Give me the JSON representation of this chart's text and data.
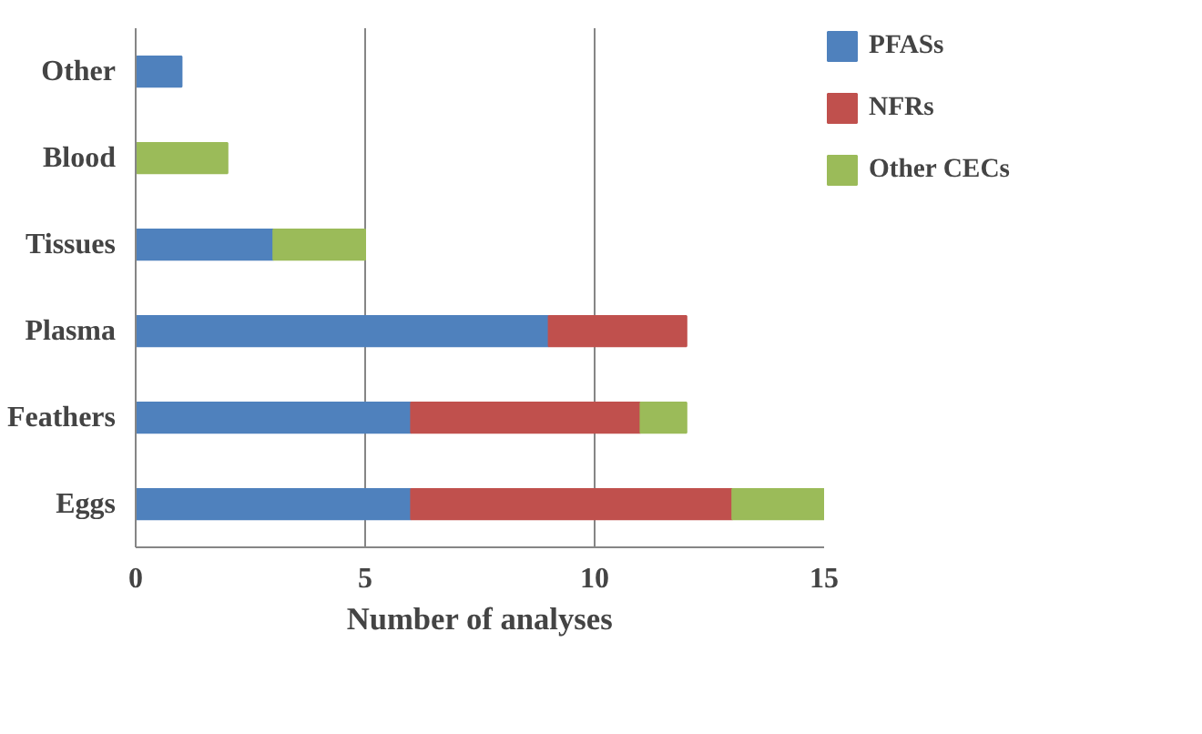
{
  "chart_data": {
    "type": "bar",
    "orientation": "horizontal",
    "stacked": true,
    "categories": [
      "Other",
      "Blood",
      "Tissues",
      "Plasma",
      "Feathers",
      "Eggs"
    ],
    "series": [
      {
        "name": "PFASs",
        "color": "#4f81bd",
        "values": [
          1,
          null,
          3,
          9,
          6,
          6
        ]
      },
      {
        "name": "NFRs",
        "color": "#c0504d",
        "values": [
          null,
          null,
          null,
          3,
          5,
          7
        ]
      },
      {
        "name": "Other CECs",
        "color": "#9bbb59",
        "values": [
          null,
          2,
          2,
          null,
          1,
          2
        ]
      }
    ],
    "xlabel": "Number of analyses",
    "xlim": [
      0,
      15
    ],
    "xticks": [
      0,
      5,
      10,
      15
    ],
    "grid": "x",
    "legend": "right"
  }
}
